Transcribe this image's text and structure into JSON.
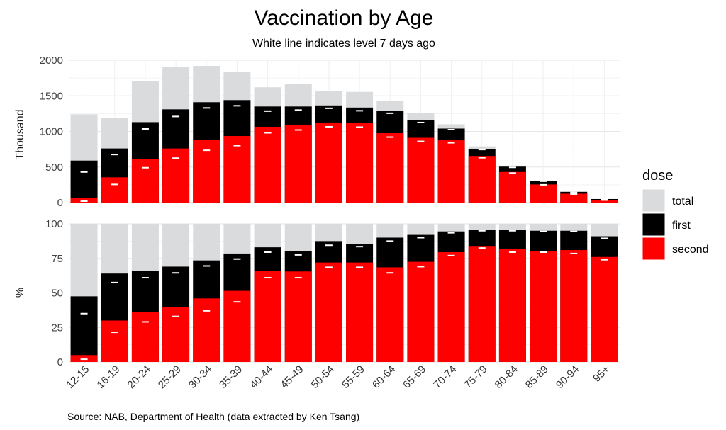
{
  "title": "Vaccination by Age",
  "subtitle": "White line indicates level 7 days ago",
  "caption": "Source: NAB, Department of Health (data extracted by Ken Tsang)",
  "legend": {
    "title": "dose",
    "position": "right",
    "items": [
      {
        "label": "total",
        "color": "#d9dbdd"
      },
      {
        "label": "first",
        "color": "#000000"
      },
      {
        "label": "second",
        "color": "#ff0000"
      }
    ]
  },
  "chart_data": [
    {
      "type": "bar",
      "ylabel": "Thousand",
      "ylim": [
        0,
        2000
      ],
      "yticks": [
        0,
        500,
        1000,
        1500,
        2000
      ],
      "grid": true,
      "categories": [
        "12-15",
        "16-19",
        "20-24",
        "25-29",
        "30-34",
        "35-39",
        "40-44",
        "45-49",
        "50-54",
        "55-59",
        "60-64",
        "65-69",
        "70-74",
        "75-79",
        "80-84",
        "85-89",
        "90-94",
        "95+"
      ],
      "series": [
        {
          "name": "total",
          "values": [
            1240,
            1190,
            1710,
            1900,
            1920,
            1840,
            1620,
            1670,
            1565,
            1555,
            1430,
            1255,
            1100,
            790,
            520,
            310,
            160,
            50
          ]
        },
        {
          "name": "first",
          "values": [
            590,
            760,
            1130,
            1310,
            1410,
            1440,
            1350,
            1350,
            1365,
            1335,
            1285,
            1155,
            1040,
            755,
            505,
            305,
            150,
            50
          ]
        },
        {
          "name": "second",
          "values": [
            60,
            355,
            615,
            760,
            880,
            935,
            1065,
            1095,
            1125,
            1120,
            975,
            910,
            875,
            655,
            430,
            255,
            125,
            40
          ]
        }
      ],
      "prev_week_first": [
        430,
        675,
        1035,
        1210,
        1330,
        1360,
        1285,
        1300,
        1325,
        1290,
        1255,
        1125,
        1025,
        745,
        495,
        300,
        145,
        45
      ],
      "prev_week_second": [
        20,
        255,
        490,
        625,
        735,
        800,
        980,
        1020,
        1065,
        1060,
        920,
        860,
        840,
        630,
        415,
        250,
        120,
        35
      ]
    },
    {
      "type": "bar",
      "ylabel": "%",
      "ylim": [
        0,
        100
      ],
      "yticks": [
        0,
        25,
        50,
        75,
        100
      ],
      "grid": true,
      "categories": [
        "12-15",
        "16-19",
        "20-24",
        "25-29",
        "30-34",
        "35-39",
        "40-44",
        "45-49",
        "50-54",
        "55-59",
        "60-64",
        "65-69",
        "70-74",
        "75-79",
        "80-84",
        "85-89",
        "90-94",
        "95+"
      ],
      "series": [
        {
          "name": "total",
          "values": [
            100,
            100,
            100,
            100,
            100,
            100,
            100,
            100,
            100,
            100,
            100,
            100,
            100,
            100,
            100,
            100,
            100,
            100
          ]
        },
        {
          "name": "first",
          "values": [
            47.5,
            64,
            66,
            69,
            73.5,
            78.5,
            83,
            80.5,
            87.5,
            85.5,
            90,
            92,
            94.5,
            95.5,
            95.5,
            95,
            95,
            91
          ]
        },
        {
          "name": "second",
          "values": [
            5,
            30,
            36,
            40,
            46,
            51.5,
            66,
            65.5,
            72,
            72,
            68.5,
            72.5,
            79.5,
            84,
            82,
            80.5,
            81,
            76
          ]
        }
      ],
      "prev_week_first": [
        35,
        57.5,
        61,
        64.5,
        69.5,
        74.5,
        79.5,
        77.5,
        84.5,
        83.5,
        87.5,
        90,
        93.5,
        95,
        95,
        94.5,
        94.5,
        89.5
      ],
      "prev_week_second": [
        2,
        21.5,
        29,
        33,
        37,
        43.5,
        61,
        61,
        68.5,
        68.5,
        64.5,
        69,
        77,
        82.5,
        79.5,
        79.5,
        78.5,
        74
      ]
    }
  ]
}
